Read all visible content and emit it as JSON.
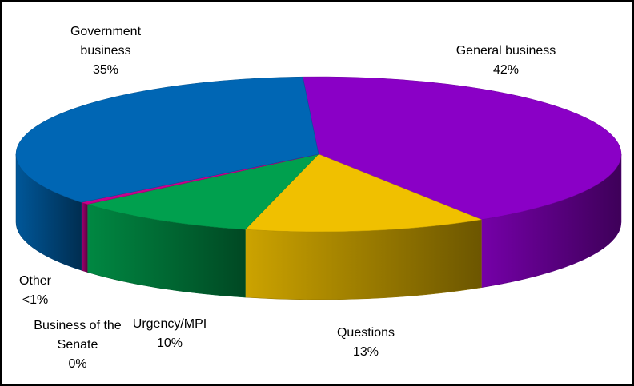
{
  "chart_data": {
    "type": "pie",
    "categories": [
      "General business",
      "Questions",
      "Urgency/MPI",
      "Business of the Senate",
      "Other",
      "Government business"
    ],
    "values": [
      42,
      13,
      10,
      0,
      0.5,
      35
    ],
    "value_labels": [
      "42%",
      "13%",
      "10%",
      "0%",
      "<1%",
      "35%"
    ],
    "colors": [
      "#8a00c6",
      "#f0c000",
      "#00a04e",
      "#c8108c",
      "#c8008c",
      "#0066b4"
    ]
  }
}
